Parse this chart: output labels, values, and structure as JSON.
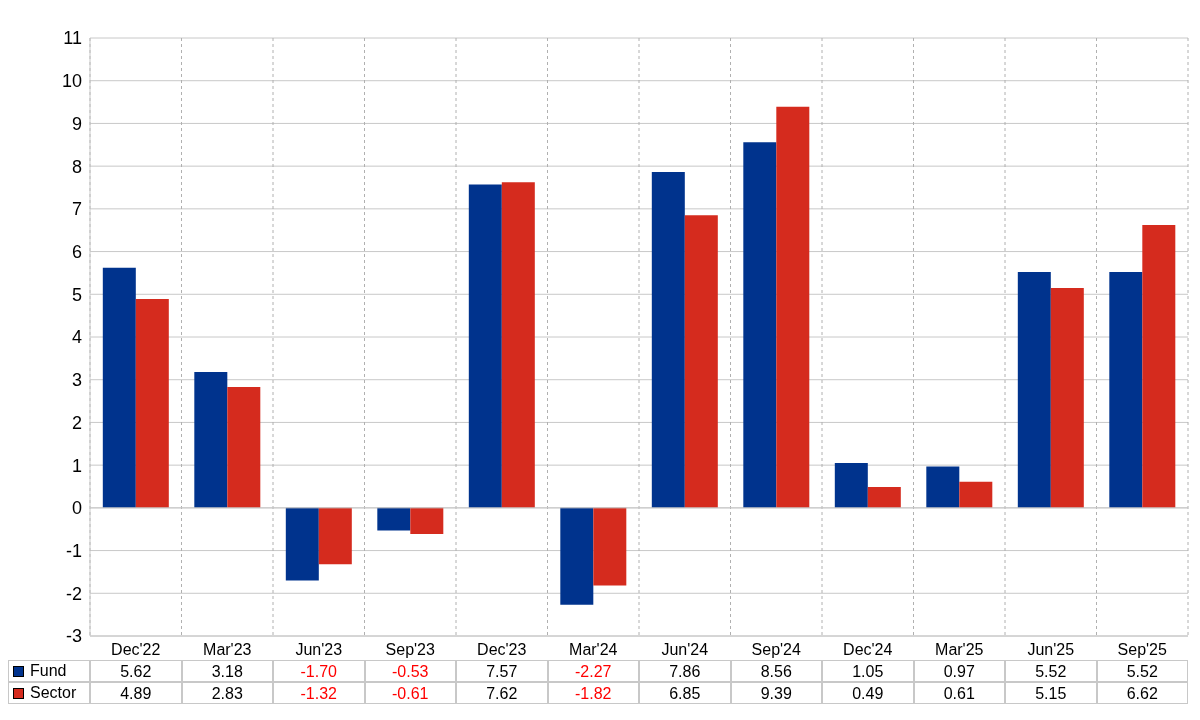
{
  "chart_data": {
    "type": "bar",
    "categories": [
      "Dec'22",
      "Mar'23",
      "Jun'23",
      "Sep'23",
      "Dec'23",
      "Mar'24",
      "Jun'24",
      "Sep'24",
      "Dec'24",
      "Mar'25",
      "Jun'25",
      "Sep'25"
    ],
    "series": [
      {
        "name": "Fund",
        "color": "#00338d",
        "values": [
          5.62,
          3.18,
          -1.7,
          -0.53,
          7.57,
          -2.27,
          7.86,
          8.56,
          1.05,
          0.97,
          5.52,
          5.52
        ],
        "value_labels": [
          "5.62",
          "3.18",
          "-1.70",
          "-0.53",
          "7.57",
          "-2.27",
          "7.86",
          "8.56",
          "1.05",
          "0.97",
          "5.52",
          "5.52"
        ]
      },
      {
        "name": "Sector",
        "color": "#d52b1e",
        "values": [
          4.89,
          2.83,
          -1.32,
          -0.61,
          7.62,
          -1.82,
          6.85,
          9.39,
          0.49,
          0.61,
          5.15,
          6.62
        ],
        "value_labels": [
          "4.89",
          "2.83",
          "-1.32",
          "-0.61",
          "7.62",
          "-1.82",
          "6.85",
          "9.39",
          "0.49",
          "0.61",
          "5.15",
          "6.62"
        ]
      }
    ],
    "ylim": [
      -3,
      11
    ],
    "yticks": [
      -3,
      -2,
      -1,
      0,
      1,
      2,
      3,
      4,
      5,
      6,
      7,
      8,
      9,
      10,
      11
    ],
    "grid": true,
    "legend": "bottom left"
  }
}
